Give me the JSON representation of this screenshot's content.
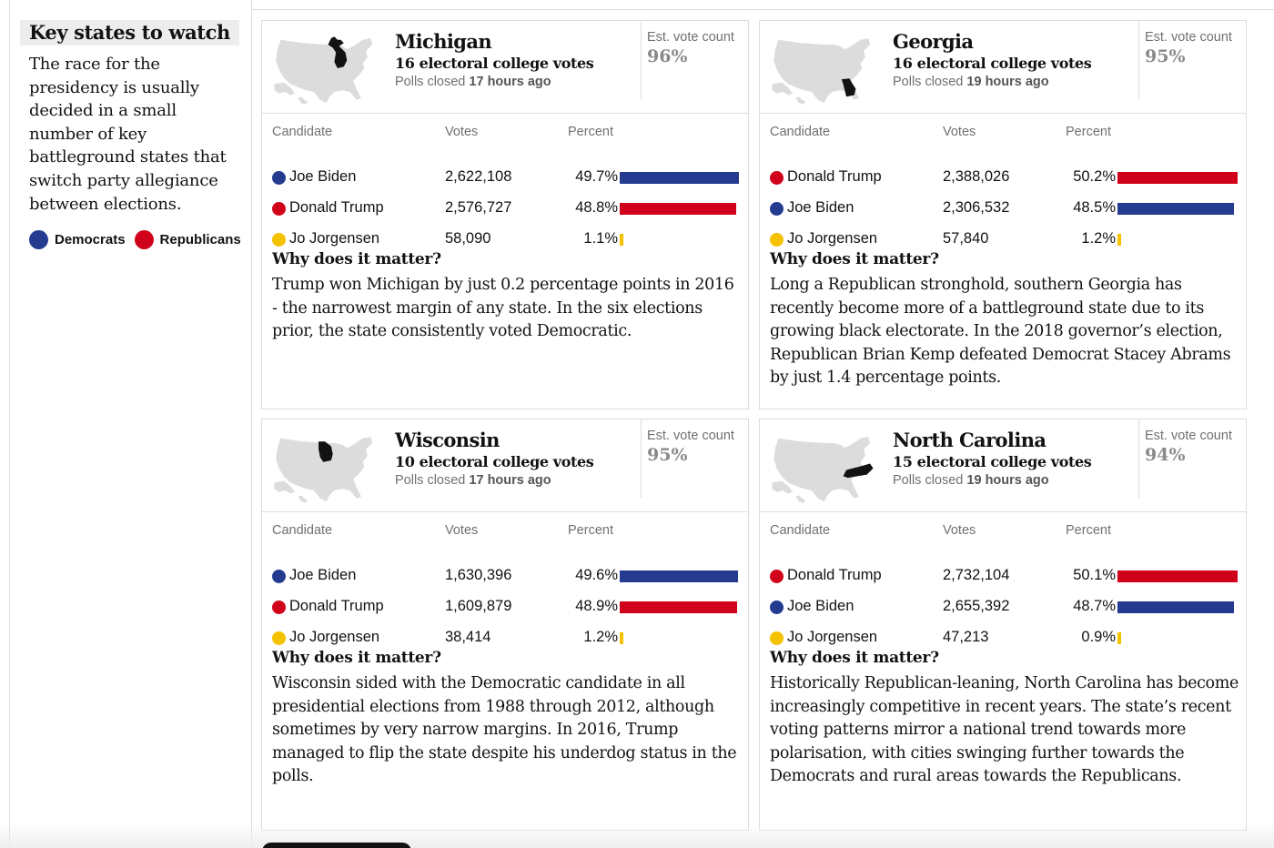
{
  "sidebar": {
    "title": "Key states to watch",
    "description": "The race for the presidency is usually decided in a small number of key battleground states that switch party allegiance between elections.",
    "legend": [
      {
        "label": "Democrats",
        "color": "#243b8f"
      },
      {
        "label": "Republicans",
        "color": "#d0021b"
      }
    ]
  },
  "columns": {
    "candidate": "Candidate",
    "votes": "Votes",
    "percent": "Percent"
  },
  "labels": {
    "est_vote_count": "Est. vote count",
    "polls_closed_prefix": "Polls closed",
    "why_title": "Why does it matter?"
  },
  "colors": {
    "dem": "#243b8f",
    "rep": "#d0021b",
    "lib": "#f5c200",
    "map": "#dcdcdc",
    "highlight": "#121212"
  },
  "states": [
    {
      "name": "Michigan",
      "ec_votes": "16 electoral college votes",
      "polls_closed": "17 hours ago",
      "est_count": "96%",
      "map_icon": "us-map-michigan-icon",
      "candidates": [
        {
          "name": "Joe Biden",
          "party": "dem",
          "votes": "2,622,108",
          "pct": "49.7%",
          "share": 49.7
        },
        {
          "name": "Donald Trump",
          "party": "rep",
          "votes": "2,576,727",
          "pct": "48.8%",
          "share": 48.8
        },
        {
          "name": "Jo Jorgensen",
          "party": "lib",
          "votes": "58,090",
          "pct": "1.1%",
          "share": 1.1
        }
      ],
      "why_text": "Trump won Michigan by just 0.2 percentage points in 2016 - the narrowest margin of any state. In the six elections prior, the state consistently voted Democratic."
    },
    {
      "name": "Georgia",
      "ec_votes": "16 electoral college votes",
      "polls_closed": "19 hours ago",
      "est_count": "95%",
      "map_icon": "us-map-georgia-icon",
      "candidates": [
        {
          "name": "Donald Trump",
          "party": "rep",
          "votes": "2,388,026",
          "pct": "50.2%",
          "share": 50.2
        },
        {
          "name": "Joe Biden",
          "party": "dem",
          "votes": "2,306,532",
          "pct": "48.5%",
          "share": 48.5
        },
        {
          "name": "Jo Jorgensen",
          "party": "lib",
          "votes": "57,840",
          "pct": "1.2%",
          "share": 1.2
        }
      ],
      "why_text": "Long a Republican stronghold, southern Georgia has recently become more of a battleground state due to its growing black electorate. In the 2018 governor’s election, Republican Brian Kemp defeated Democrat Stacey Abrams by just 1.4 percentage points."
    },
    {
      "name": "Wisconsin",
      "ec_votes": "10 electoral college votes",
      "polls_closed": "17 hours ago",
      "est_count": "95%",
      "map_icon": "us-map-wisconsin-icon",
      "candidates": [
        {
          "name": "Joe Biden",
          "party": "dem",
          "votes": "1,630,396",
          "pct": "49.6%",
          "share": 49.6
        },
        {
          "name": "Donald Trump",
          "party": "rep",
          "votes": "1,609,879",
          "pct": "48.9%",
          "share": 48.9
        },
        {
          "name": "Jo Jorgensen",
          "party": "lib",
          "votes": "38,414",
          "pct": "1.2%",
          "share": 1.2
        }
      ],
      "why_text": "Wisconsin sided with the Democratic candidate in all presidential elections from 1988 through 2012, although sometimes by very narrow margins. In 2016, Trump managed to flip the state despite his underdog status in the polls."
    },
    {
      "name": "North Carolina",
      "ec_votes": "15 electoral college votes",
      "polls_closed": "19 hours ago",
      "est_count": "94%",
      "map_icon": "us-map-north-carolina-icon",
      "candidates": [
        {
          "name": "Donald Trump",
          "party": "rep",
          "votes": "2,732,104",
          "pct": "50.1%",
          "share": 50.1
        },
        {
          "name": "Joe Biden",
          "party": "dem",
          "votes": "2,655,392",
          "pct": "48.7%",
          "share": 48.7
        },
        {
          "name": "Jo Jorgensen",
          "party": "lib",
          "votes": "47,213",
          "pct": "0.9%",
          "share": 0.9
        }
      ],
      "why_text": "Historically Republican-leaning, North Carolina has become increasingly competitive in recent years. The state’s recent voting patterns mirror a national trend towards more polarisation, with cities swinging further towards the Democrats and rural areas towards the Republicans."
    }
  ]
}
